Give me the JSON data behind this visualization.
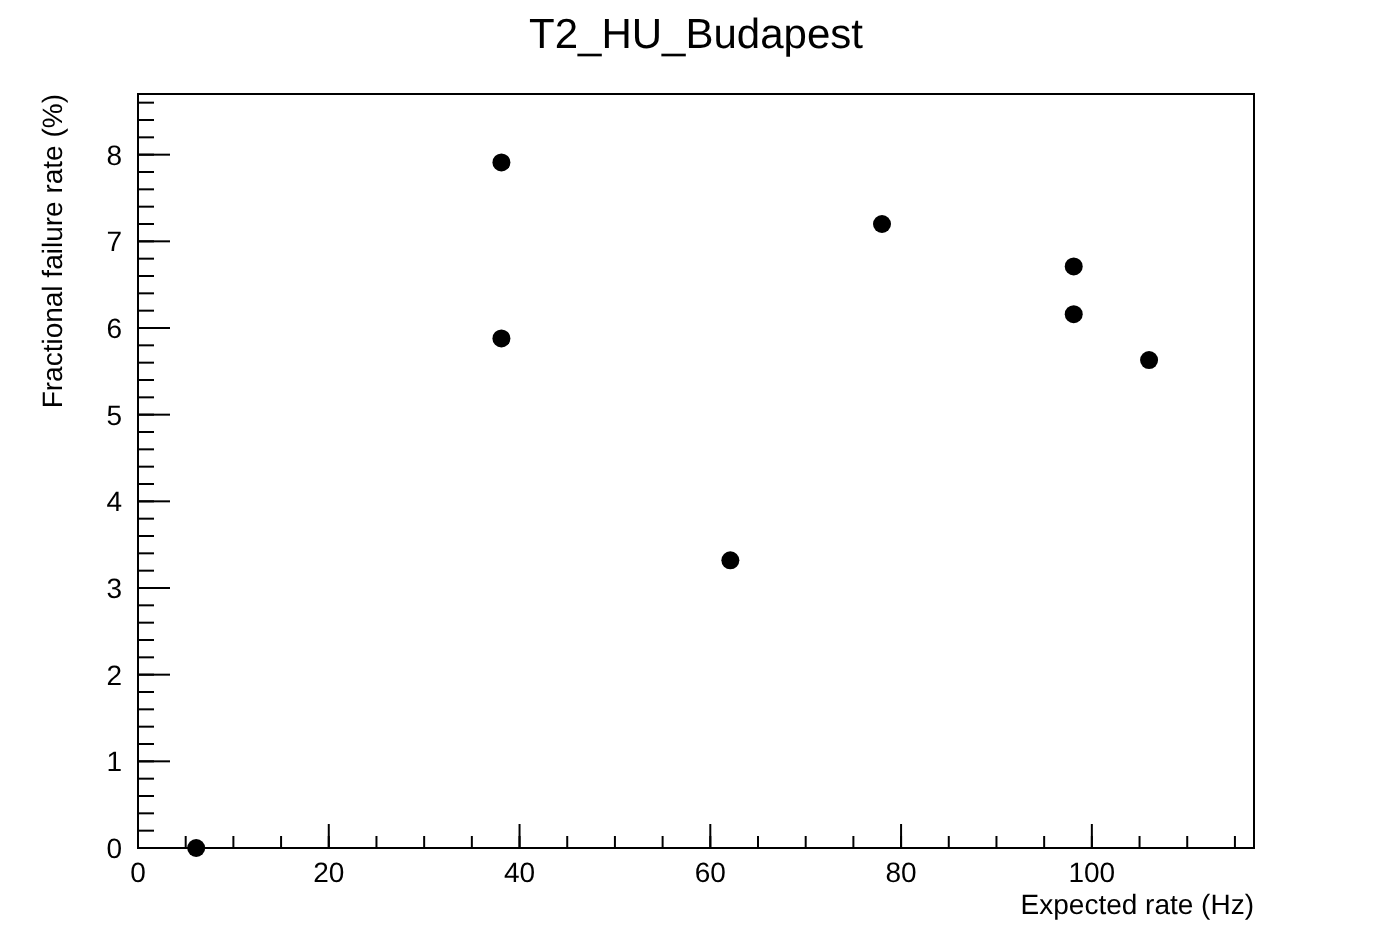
{
  "chart_data": {
    "type": "scatter",
    "title": "T2_HU_Budapest",
    "xlabel": "Expected rate (Hz)",
    "ylabel": "Fractional failure rate (%)",
    "x": [
      6.1,
      38.1,
      38.1,
      62.1,
      78.0,
      98.1,
      98.1,
      106.0
    ],
    "series": [
      {
        "color": "#000000",
        "values": [
          0,
          7.91,
          5.88,
          3.32,
          7.2,
          6.71,
          6.16,
          5.63
        ]
      }
    ],
    "xlim": [
      0,
      117
    ],
    "xticks": [
      0,
      20,
      40,
      60,
      80,
      100
    ],
    "ylim": [
      0,
      8.7
    ],
    "yticks": [
      0,
      1,
      2,
      3,
      4,
      5,
      6,
      7,
      8
    ],
    "marker": "circle",
    "grid": false
  }
}
